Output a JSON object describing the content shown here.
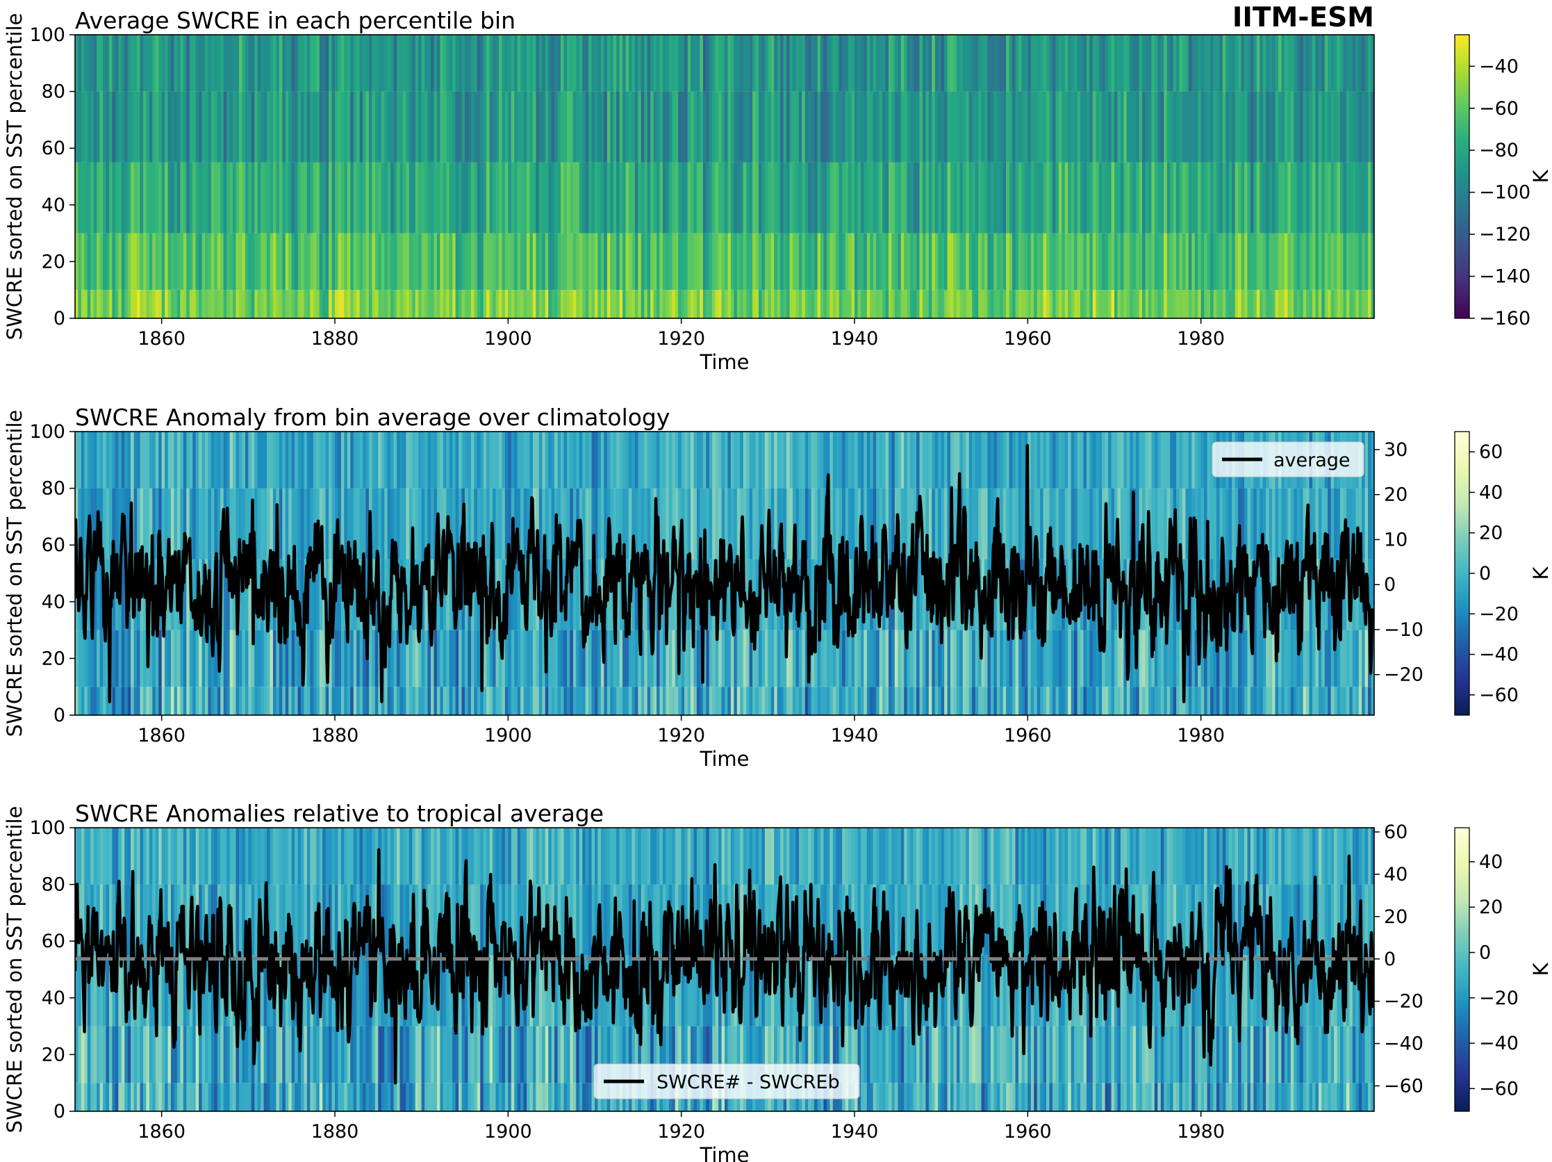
{
  "figure": {
    "label": "IITM-ESM"
  },
  "colormaps": {
    "viridis": [
      "#440154",
      "#472d7b",
      "#3b528b",
      "#2c728e",
      "#21918c",
      "#28ae80",
      "#5ec962",
      "#addc30",
      "#fde725"
    ],
    "ylgnbu_r": [
      "#081d58",
      "#253494",
      "#225ea8",
      "#1d91c0",
      "#41b6c4",
      "#7fcdbb",
      "#c7e9b4",
      "#edf8b1",
      "#ffffd9"
    ]
  },
  "chart_data": [
    {
      "type": "heatmap",
      "title": "Average SWCRE in each percentile bin",
      "xlabel": "Time",
      "ylabel": "SWCRE sorted on SST percentile",
      "xlim": [
        1850,
        2000
      ],
      "x_ticks": [
        "1860",
        "1880",
        "1900",
        "1920",
        "1940",
        "1960",
        "1980"
      ],
      "ylim": [
        0,
        100
      ],
      "y_ticks": [
        "0",
        "20",
        "40",
        "60",
        "80",
        "100"
      ],
      "colormap": "viridis",
      "colorbar": {
        "label": "K",
        "range": [
          -160,
          -25
        ],
        "ticks": [
          "−40",
          "−60",
          "−80",
          "−100",
          "−120",
          "−140",
          "−160"
        ],
        "tick_values": [
          -40,
          -60,
          -80,
          -100,
          -120,
          -140,
          -160
        ]
      },
      "field_description_values": {
        "typical_low_percentile": -45,
        "typical_high_percentile": -85
      }
    },
    {
      "type": "heatmap",
      "title": "SWCRE Anomaly from bin average over climatology",
      "xlabel": "Time",
      "ylabel": "SWCRE sorted on SST percentile",
      "xlim": [
        1850,
        2000
      ],
      "x_ticks": [
        "1860",
        "1880",
        "1900",
        "1920",
        "1940",
        "1960",
        "1980"
      ],
      "ylim": [
        0,
        100
      ],
      "y_ticks": [
        "0",
        "20",
        "40",
        "60",
        "80",
        "100"
      ],
      "colormap": "ylgnbu_r",
      "colorbar": {
        "label": "K",
        "range": [
          -70,
          70
        ],
        "ticks": [
          "60",
          "40",
          "20",
          "0",
          "−20",
          "−40",
          "−60"
        ],
        "tick_values": [
          60,
          40,
          20,
          0,
          -20,
          -40,
          -60
        ]
      },
      "overlay": {
        "type": "line",
        "name": "average",
        "color": "#000000",
        "y2lim": [
          -29,
          34
        ],
        "y2_ticks": [
          "30",
          "20",
          "10",
          "0",
          "−10",
          "−20"
        ],
        "y2_tick_values": [
          30,
          20,
          10,
          0,
          -10,
          -20
        ],
        "x_start": 1850,
        "x_step_years": 0.0833,
        "n_points": 1800,
        "range_observed": [
          -26,
          31
        ],
        "legend_position": "top-right"
      }
    },
    {
      "type": "heatmap",
      "title": "SWCRE Anomalies relative to tropical average",
      "xlabel": "Time",
      "ylabel": "SWCRE sorted on SST percentile",
      "xlim": [
        1850,
        2000
      ],
      "x_ticks": [
        "1860",
        "1880",
        "1900",
        "1920",
        "1940",
        "1960",
        "1980"
      ],
      "ylim": [
        0,
        100
      ],
      "y_ticks": [
        "0",
        "20",
        "40",
        "60",
        "80",
        "100"
      ],
      "colormap": "ylgnbu_r",
      "colorbar": {
        "label": "K",
        "range": [
          -70,
          55
        ],
        "ticks": [
          "40",
          "20",
          "0",
          "−20",
          "−40",
          "−60"
        ],
        "tick_values": [
          40,
          20,
          0,
          -20,
          -40,
          -60
        ]
      },
      "overlay": {
        "type": "line",
        "name": "SWCRE# - SWCREb",
        "color": "#000000",
        "y2lim": [
          -72,
          62
        ],
        "y2_ticks": [
          "60",
          "40",
          "20",
          "0",
          "−20",
          "−40",
          "−60"
        ],
        "y2_tick_values": [
          60,
          40,
          20,
          0,
          -20,
          -40,
          -60
        ],
        "x_start": 1850,
        "x_step_years": 0.0833,
        "n_points": 1800,
        "range_observed": [
          -66,
          58
        ],
        "zero_line": {
          "value": 0,
          "style": "dashed",
          "color": "#808080"
        },
        "legend_position": "bottom-center"
      }
    }
  ]
}
